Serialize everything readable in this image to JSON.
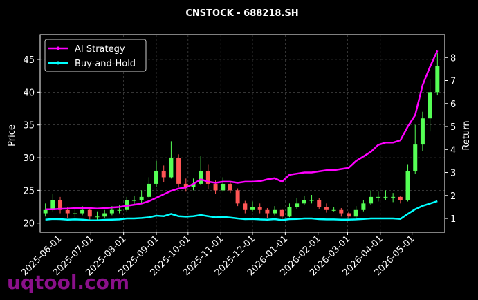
{
  "chart_data": {
    "type": "candlestick",
    "title": "CNSTOCK - 688218.SH",
    "watermark": "uqtool.com",
    "ylabel": "Price",
    "y2label": "Return",
    "x": [
      "2025-05-19",
      "2025-05-26",
      "2025-06-02",
      "2025-06-09",
      "2025-06-16",
      "2025-06-23",
      "2025-06-30",
      "2025-07-07",
      "2025-07-14",
      "2025-07-21",
      "2025-07-28",
      "2025-08-04",
      "2025-08-11",
      "2025-08-18",
      "2025-08-25",
      "2025-09-01",
      "2025-09-08",
      "2025-09-15",
      "2025-09-22",
      "2025-09-29",
      "2025-10-06",
      "2025-10-13",
      "2025-10-20",
      "2025-10-27",
      "2025-11-03",
      "2025-11-10",
      "2025-11-17",
      "2025-11-24",
      "2025-12-01",
      "2025-12-08",
      "2025-12-15",
      "2025-12-22",
      "2025-12-29",
      "2026-01-05",
      "2026-01-12",
      "2026-01-19",
      "2026-01-26",
      "2026-02-02",
      "2026-02-09",
      "2026-02-16",
      "2026-02-23",
      "2026-03-02",
      "2026-03-09",
      "2026-03-16",
      "2026-03-23",
      "2026-03-30",
      "2026-04-06",
      "2026-04-13",
      "2026-04-20",
      "2026-04-27",
      "2026-05-04",
      "2026-05-11",
      "2026-05-18",
      "2026-05-25"
    ],
    "open": [
      21.5,
      22,
      23.5,
      22,
      21.5,
      21.5,
      22,
      21,
      21,
      21.5,
      22,
      22,
      23.5,
      23.5,
      24,
      26,
      28,
      27,
      30,
      26,
      25.5,
      26,
      28,
      26,
      25,
      26,
      25,
      23,
      22,
      22.5,
      22,
      21.5,
      22,
      21,
      22.5,
      23,
      23.5,
      23.5,
      22.5,
      22,
      22,
      21.5,
      21,
      22,
      23,
      24,
      24,
      24,
      24,
      23.5,
      28,
      32,
      36,
      40
    ],
    "high": [
      23,
      24.5,
      24,
      22.5,
      22.3,
      22.6,
      22.2,
      21.8,
      22,
      22.6,
      22.8,
      24,
      24.2,
      25,
      27,
      29.5,
      28.8,
      32.5,
      30.5,
      26.8,
      26.8,
      30.2,
      29,
      26.5,
      27,
      26.4,
      25.3,
      23.4,
      23.3,
      23,
      22.3,
      22.6,
      22.2,
      23,
      23.8,
      24.2,
      24.3,
      23.8,
      23,
      22.4,
      22.3,
      21.8,
      22.6,
      23.5,
      25,
      24.8,
      25,
      24.6,
      24.2,
      29,
      35,
      37,
      42,
      46
    ],
    "low": [
      21,
      21.8,
      21.5,
      20.8,
      20.9,
      21.2,
      20.5,
      20.4,
      20.8,
      21.2,
      21.5,
      21.8,
      22.8,
      23,
      23.8,
      25.5,
      26.2,
      26.8,
      25.5,
      24.8,
      25,
      25.8,
      25.2,
      24.5,
      24.8,
      24.6,
      22.6,
      21.5,
      21.8,
      21.5,
      20.8,
      21.2,
      20.5,
      20.9,
      22.2,
      22.8,
      23,
      22.2,
      21.6,
      21.8,
      21,
      20.3,
      20.8,
      21.8,
      22.8,
      23.3,
      23.5,
      23.2,
      23,
      23.3,
      27.5,
      31,
      34,
      39.5
    ],
    "close": [
      22,
      23.5,
      22,
      21.5,
      21.5,
      22,
      21,
      21,
      21.5,
      22,
      22,
      23.5,
      23.5,
      24,
      26,
      28,
      27,
      30,
      26,
      25.5,
      26,
      28,
      26,
      25,
      26,
      25,
      23,
      22,
      22.5,
      22,
      21.5,
      22,
      21,
      22.5,
      23,
      23.5,
      23.5,
      22.5,
      22,
      22,
      21.5,
      21,
      22,
      23,
      24,
      24,
      24,
      24,
      23.5,
      28,
      32,
      36,
      40,
      44
    ],
    "up_color": "#55ff55",
    "down_color": "#ff5555",
    "series": [
      {
        "name": "AI Strategy",
        "color": "#ff00ff",
        "axis": "y2",
        "values": [
          1.4,
          1.4,
          1.42,
          1.43,
          1.45,
          1.45,
          1.45,
          1.43,
          1.45,
          1.48,
          1.5,
          1.55,
          1.6,
          1.65,
          1.75,
          1.9,
          2.05,
          2.2,
          2.3,
          2.35,
          2.5,
          2.7,
          2.6,
          2.55,
          2.6,
          2.6,
          2.55,
          2.6,
          2.6,
          2.62,
          2.7,
          2.75,
          2.6,
          2.9,
          2.95,
          3.0,
          3.0,
          3.05,
          3.1,
          3.1,
          3.15,
          3.2,
          3.5,
          3.7,
          3.9,
          4.2,
          4.3,
          4.3,
          4.4,
          5.0,
          5.5,
          6.8,
          7.6,
          8.3
        ]
      },
      {
        "name": "Buy-and-Hold",
        "color": "#00ffff",
        "axis": "y2",
        "values": [
          0.95,
          0.98,
          0.97,
          0.95,
          0.96,
          0.95,
          0.92,
          0.92,
          0.94,
          0.95,
          0.96,
          1.0,
          1.0,
          1.02,
          1.05,
          1.12,
          1.1,
          1.2,
          1.1,
          1.08,
          1.1,
          1.15,
          1.1,
          1.05,
          1.07,
          1.04,
          1.0,
          0.97,
          0.98,
          0.96,
          0.95,
          0.97,
          0.93,
          0.97,
          0.98,
          1.0,
          1.0,
          0.97,
          0.96,
          0.96,
          0.95,
          0.95,
          0.96,
          0.98,
          1.0,
          1.0,
          1.0,
          1.0,
          0.98,
          1.2,
          1.4,
          1.55,
          1.65,
          1.75
        ]
      }
    ],
    "xlim": [
      "2025-05-14",
      "2026-06-01"
    ],
    "xticks": [
      "2025-06-01",
      "2025-07-01",
      "2025-08-01",
      "2025-09-01",
      "2025-10-01",
      "2025-11-01",
      "2025-12-01",
      "2026-01-01",
      "2026-02-01",
      "2026-03-01",
      "2026-04-01",
      "2026-05-01"
    ],
    "ylim": [
      18.6,
      48.8
    ],
    "yticks": [
      20,
      25,
      30,
      35,
      40,
      45
    ],
    "y2lim": [
      0.4,
      9.0
    ],
    "y2ticks": [
      1,
      2,
      3,
      4,
      5,
      6,
      7,
      8
    ],
    "grid": true,
    "legend": "upper left"
  }
}
